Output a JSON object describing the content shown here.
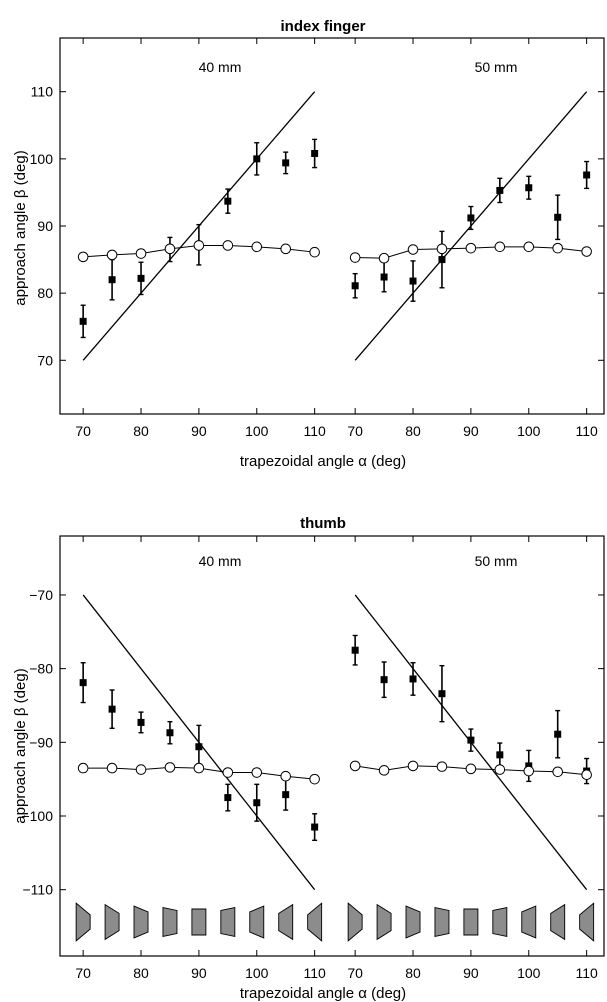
{
  "chart_data": [
    {
      "type": "scatter",
      "title": "index finger",
      "xlabel": "trapezoidal angle α (deg)",
      "ylabel": "approach angle β (deg)",
      "ylim": [
        62,
        118
      ],
      "yticks": [
        70,
        80,
        90,
        100,
        110
      ],
      "xticks": [
        70,
        80,
        90,
        100,
        110
      ],
      "grid": false,
      "panels": [
        {
          "label": "40 mm",
          "xlim": [
            66,
            113
          ],
          "reference_line": {
            "x": [
              70,
              110
            ],
            "y": [
              70,
              110
            ]
          },
          "series": [
            {
              "marker": "filled-square",
              "x": [
                70,
                75,
                80,
                85,
                90,
                95,
                100,
                105,
                110
              ],
              "y": [
                75.8,
                82.0,
                82.2,
                86.5,
                87.2,
                93.7,
                100.0,
                99.4,
                100.8
              ],
              "err": [
                2.4,
                3.0,
                2.4,
                1.8,
                3.0,
                1.8,
                2.4,
                1.6,
                2.1
              ]
            },
            {
              "marker": "open-circle",
              "x": [
                70,
                75,
                80,
                85,
                90,
                95,
                100,
                105,
                110
              ],
              "y": [
                85.4,
                85.7,
                85.9,
                86.6,
                87.1,
                87.1,
                86.9,
                86.6,
                86.1
              ]
            }
          ]
        },
        {
          "label": "50 mm",
          "xlim": [
            66,
            113
          ],
          "reference_line": {
            "x": [
              70,
              110
            ],
            "y": [
              70,
              110
            ]
          },
          "series": [
            {
              "marker": "filled-square",
              "x": [
                70,
                75,
                80,
                85,
                90,
                95,
                100,
                105,
                110
              ],
              "y": [
                81.1,
                82.4,
                81.8,
                85.0,
                91.2,
                95.3,
                95.7,
                91.3,
                97.6
              ],
              "err": [
                1.8,
                2.2,
                3.0,
                4.2,
                1.7,
                1.8,
                1.7,
                3.3,
                2.0
              ]
            },
            {
              "marker": "open-circle",
              "x": [
                70,
                75,
                80,
                85,
                90,
                95,
                100,
                105,
                110
              ],
              "y": [
                85.3,
                85.2,
                86.5,
                86.6,
                86.7,
                86.9,
                86.9,
                86.7,
                86.2
              ]
            }
          ]
        }
      ]
    },
    {
      "type": "scatter",
      "title": "thumb",
      "xlabel": "trapezoidal angle α (deg)",
      "ylabel": "approach angle β (deg)",
      "ylim": [
        -119,
        -62
      ],
      "yticks": [
        -70,
        -80,
        -90,
        -100,
        -110
      ],
      "xticks": [
        70,
        80,
        90,
        100,
        110
      ],
      "grid": false,
      "panels": [
        {
          "label": "40 mm",
          "xlim": [
            66,
            113
          ],
          "reference_line": {
            "x": [
              70,
              110
            ],
            "y": [
              -70,
              -110
            ]
          },
          "trapezoid_icons": [
            70,
            75,
            80,
            85,
            90,
            95,
            100,
            105,
            110
          ],
          "series": [
            {
              "marker": "filled-square",
              "x": [
                70,
                75,
                80,
                85,
                90,
                95,
                100,
                105,
                110
              ],
              "y": [
                -81.9,
                -85.5,
                -87.3,
                -88.7,
                -90.6,
                -97.5,
                -98.2,
                -97.1,
                -101.5
              ],
              "err": [
                2.7,
                2.6,
                1.4,
                1.5,
                2.9,
                1.8,
                2.5,
                2.1,
                1.8
              ]
            },
            {
              "marker": "open-circle",
              "x": [
                70,
                75,
                80,
                85,
                90,
                95,
                100,
                105,
                110
              ],
              "y": [
                -93.5,
                -93.5,
                -93.7,
                -93.4,
                -93.5,
                -94.1,
                -94.1,
                -94.6,
                -95.0
              ]
            }
          ]
        },
        {
          "label": "50 mm",
          "xlim": [
            66,
            113
          ],
          "reference_line": {
            "x": [
              70,
              110
            ],
            "y": [
              -70,
              -110
            ]
          },
          "trapezoid_icons": [
            70,
            75,
            80,
            85,
            90,
            95,
            100,
            105,
            110
          ],
          "series": [
            {
              "marker": "filled-square",
              "x": [
                70,
                75,
                80,
                85,
                90,
                95,
                100,
                105,
                110
              ],
              "y": [
                -77.5,
                -81.5,
                -81.4,
                -83.4,
                -89.7,
                -91.7,
                -93.2,
                -88.9,
                -93.9
              ],
              "err": [
                2.0,
                2.4,
                2.2,
                3.8,
                1.5,
                1.6,
                2.1,
                3.2,
                1.7
              ]
            },
            {
              "marker": "open-circle",
              "x": [
                70,
                75,
                80,
                85,
                90,
                95,
                100,
                105,
                110
              ],
              "y": [
                -93.2,
                -93.8,
                -93.2,
                -93.3,
                -93.6,
                -93.7,
                -93.9,
                -94.0,
                -94.4
              ]
            }
          ]
        }
      ]
    }
  ]
}
